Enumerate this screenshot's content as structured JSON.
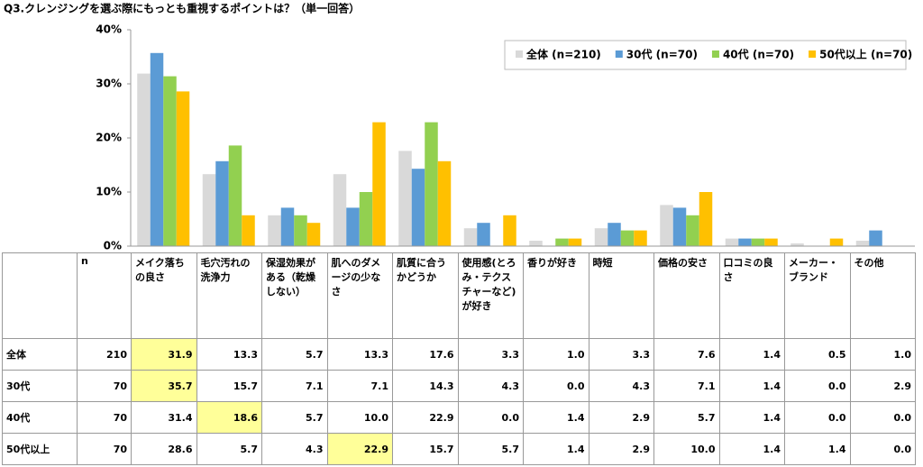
{
  "chart_data": {
    "type": "bar",
    "title": "Q3.クレンジングを選ぶ際にもっとも重視するポイントは？（単一回答）",
    "categories": [
      "メイク落ちの良さ",
      "毛穴汚れの洗浄力",
      "保湿効果がある（乾燥しない）",
      "肌へのダメージの少なさ",
      "肌質に合うかどうか",
      "使用感(とろみ・テクスチャーなど)が好き",
      "香りが好き",
      "時短",
      "価格の安さ",
      "口コミの良さ",
      "メーカー・ブランド",
      "その他"
    ],
    "series": [
      {
        "name": "全体 (n=210)",
        "color": "#d9d9d9",
        "values": [
          31.9,
          13.3,
          5.7,
          13.3,
          17.6,
          3.3,
          1.0,
          3.3,
          7.6,
          1.4,
          0.5,
          1.0
        ],
        "value_labels": [
          "31.9",
          "13.3",
          "5.7",
          "13.3",
          "17.6",
          "3.3",
          "1.0",
          "3.3",
          "7.6",
          "1.4",
          "0.5",
          "1.0"
        ]
      },
      {
        "name": "30代 (n=70)",
        "color": "#5b9bd5",
        "values": [
          35.7,
          15.7,
          7.1,
          7.1,
          14.3,
          4.3,
          0.0,
          4.3,
          7.1,
          1.4,
          0.0,
          2.9
        ],
        "value_labels": [
          "35.7",
          "15.7",
          "7.1",
          "7.1",
          "14.3",
          "4.3",
          "0.0",
          "4.3",
          "7.1",
          "1.4",
          "0.0",
          "2.9"
        ]
      },
      {
        "name": "40代 (n=70)",
        "color": "#92d050",
        "values": [
          31.4,
          18.6,
          5.7,
          10.0,
          22.9,
          0.0,
          1.4,
          2.9,
          5.7,
          1.4,
          0.0,
          0.0
        ],
        "value_labels": [
          "31.4",
          "18.6",
          "5.7",
          "10.0",
          "22.9",
          "0.0",
          "1.4",
          "2.9",
          "5.7",
          "1.4",
          "0.0",
          "0.0"
        ]
      },
      {
        "name": "50代以上 (n=70)",
        "color": "#ffc000",
        "values": [
          28.6,
          5.7,
          4.3,
          22.9,
          15.7,
          5.7,
          1.4,
          2.9,
          10.0,
          1.4,
          1.4,
          0.0
        ],
        "value_labels": [
          "28.6",
          "5.7",
          "4.3",
          "22.9",
          "15.7",
          "5.7",
          "1.4",
          "2.9",
          "10.0",
          "1.4",
          "1.4",
          "0.0"
        ]
      }
    ],
    "ylim": [
      0,
      40
    ],
    "yticks": [
      {
        "value": 0,
        "label": "0%"
      },
      {
        "value": 10,
        "label": "10%"
      },
      {
        "value": 20,
        "label": "20%"
      },
      {
        "value": 30,
        "label": "30%"
      },
      {
        "value": 40,
        "label": "40%"
      }
    ],
    "grid": false,
    "legend": "upper right"
  },
  "table": {
    "n_header": "n",
    "highlight_color": "#ffff99",
    "rows": [
      {
        "label": "全体",
        "n": 210,
        "highlight": 0
      },
      {
        "label": "30代",
        "n": 70,
        "highlight": 0
      },
      {
        "label": "40代",
        "n": 70,
        "highlight": 1
      },
      {
        "label": "50代以上",
        "n": 70,
        "highlight": 3
      }
    ]
  }
}
